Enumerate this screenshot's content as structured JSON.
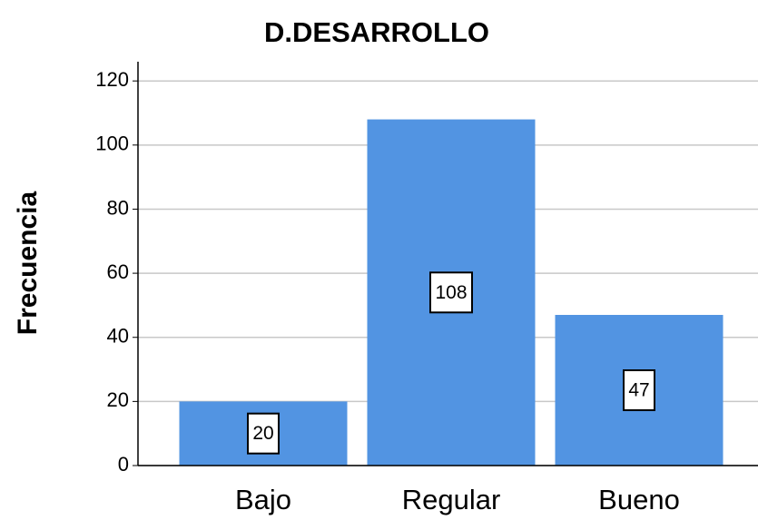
{
  "chart_data": {
    "type": "bar",
    "title": "D.DESARROLLO",
    "y_label": "Frecuencia",
    "categories": [
      "Bajo",
      "Regular",
      "Bueno"
    ],
    "values": [
      20,
      108,
      47
    ],
    "color": "#5294e2",
    "ylim": [
      0,
      126
    ],
    "yticks": [
      0,
      20,
      40,
      60,
      80,
      100,
      120
    ],
    "grid": true
  }
}
